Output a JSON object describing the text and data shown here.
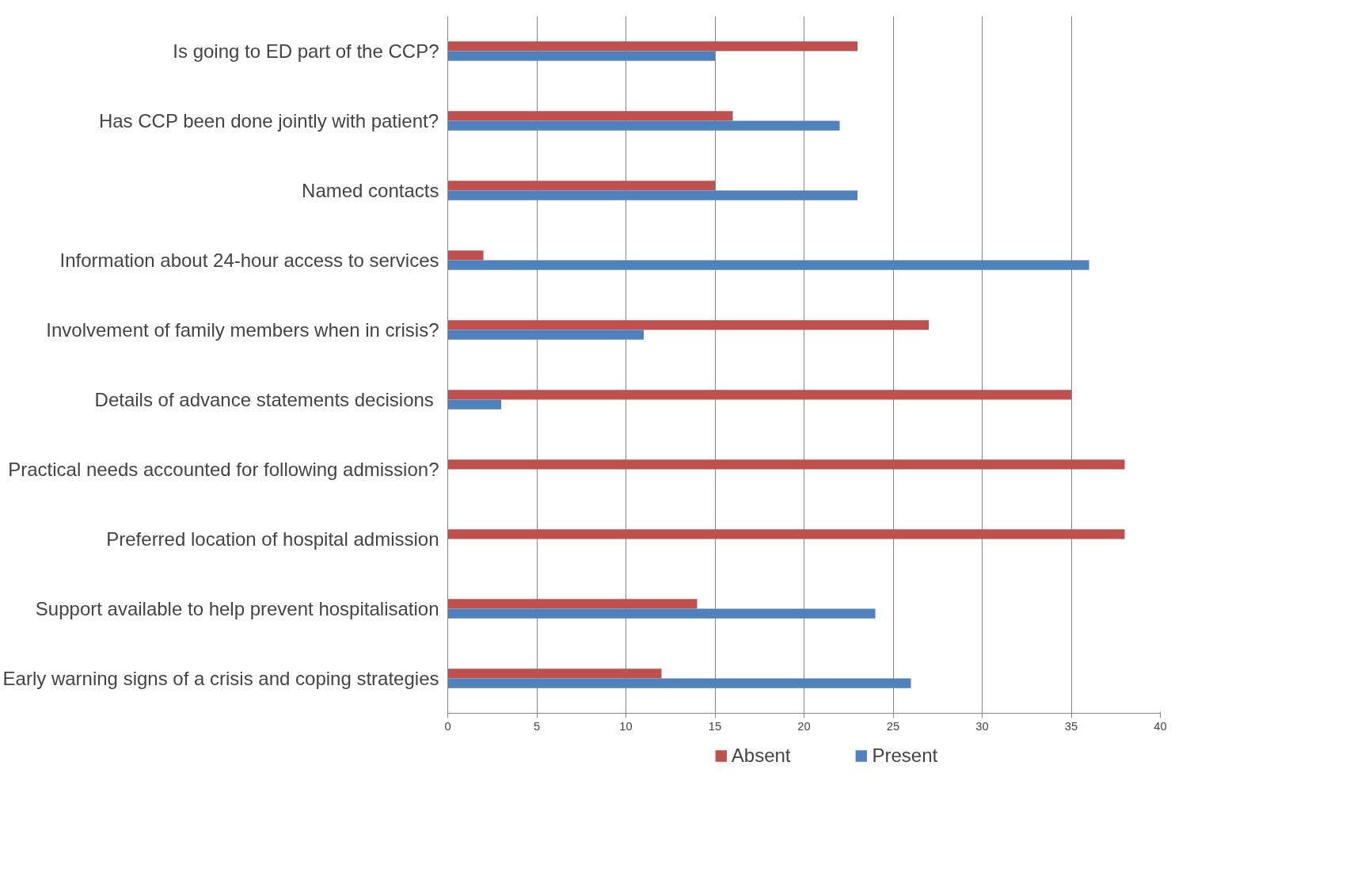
{
  "chart_data": {
    "type": "bar",
    "orientation": "horizontal",
    "categories": [
      "Is going to ED part of the CCP?",
      "Has CCP been done jointly with patient?",
      "Named contacts",
      "Information about 24-hour access to services",
      "Involvement of family members when in crisis?",
      "Details of advance statements  decisions",
      "Practical needs accounted for following admission?",
      "Preferred location of hospital admission",
      "Support available to help prevent hospitalisation",
      "Early warning signs of a crisis and coping strategies"
    ],
    "series": [
      {
        "name": "Absent",
        "color": "#c0504d",
        "values": [
          23,
          16,
          15,
          2,
          27,
          35,
          38,
          38,
          14,
          12
        ]
      },
      {
        "name": "Present",
        "color": "#4f81bd",
        "values": [
          15,
          22,
          23,
          36,
          11,
          3,
          0,
          0,
          24,
          26
        ]
      }
    ],
    "xlim": [
      0,
      40
    ],
    "xticks": [
      0,
      5,
      10,
      15,
      20,
      25,
      30,
      35,
      40
    ],
    "grid": "x",
    "legend": "bottom"
  }
}
